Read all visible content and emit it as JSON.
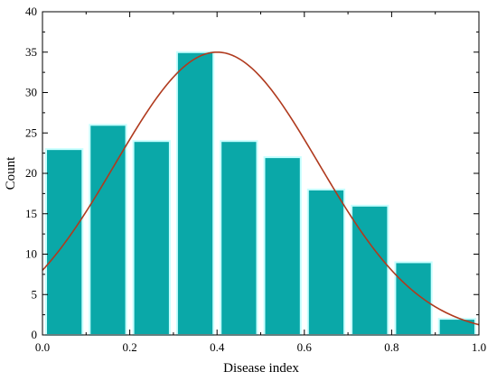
{
  "chart_data": {
    "type": "bar",
    "title": "",
    "xlabel": "Disease index",
    "ylabel": "Count",
    "xlim": [
      0.0,
      1.0
    ],
    "ylim": [
      0,
      40
    ],
    "xticks": [
      "0.0",
      "0.2",
      "0.4",
      "0.6",
      "0.8",
      "1.0"
    ],
    "yticks": [
      "0",
      "5",
      "10",
      "15",
      "20",
      "25",
      "30",
      "35",
      "40"
    ],
    "grid": false,
    "bin_width": 0.1,
    "categories": [
      "0.0-0.1",
      "0.1-0.2",
      "0.2-0.3",
      "0.3-0.4",
      "0.4-0.5",
      "0.5-0.6",
      "0.6-0.7",
      "0.7-0.8",
      "0.8-0.9",
      "0.9-1.0"
    ],
    "bins_start": [
      0.0,
      0.1,
      0.2,
      0.3,
      0.4,
      0.5,
      0.6,
      0.7,
      0.8,
      0.9
    ],
    "values": [
      23,
      26,
      24,
      35,
      24,
      22,
      18,
      16,
      9,
      2
    ],
    "fit_curve": {
      "type": "normal",
      "peak_x": 0.4,
      "peak_y": 35.0,
      "x": [
        0.0,
        0.1,
        0.2,
        0.3,
        0.4,
        0.5,
        0.6,
        0.7,
        0.8,
        0.9,
        1.0
      ],
      "y": [
        8.0,
        15.6,
        24.8,
        32.6,
        35.0,
        31.0,
        23.0,
        14.5,
        7.5,
        3.3,
        1.2
      ]
    },
    "colors": {
      "bar_fill": "#0aa8a8",
      "bar_edge": "#c8ffff",
      "curve": "#b03a1e",
      "axis": "#000000"
    }
  }
}
